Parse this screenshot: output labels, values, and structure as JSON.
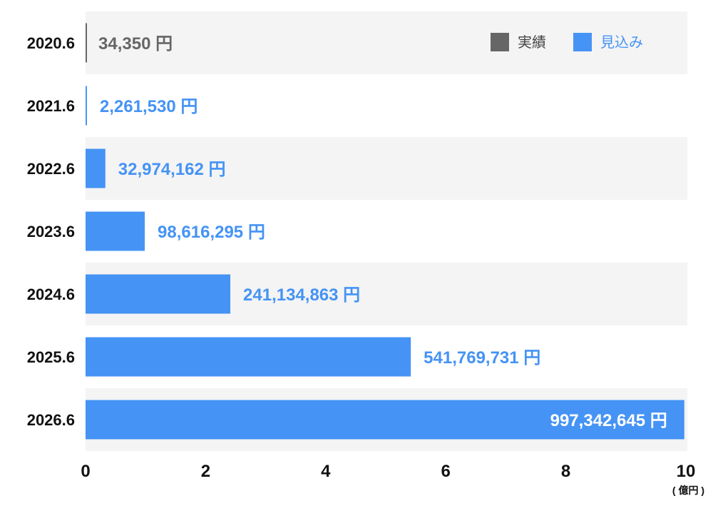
{
  "chart_data": {
    "type": "bar",
    "orientation": "horizontal",
    "categories": [
      "2020.6",
      "2021.6",
      "2022.6",
      "2023.6",
      "2024.6",
      "2025.6",
      "2026.6"
    ],
    "values": [
      34350,
      2261530,
      32974162,
      98616295,
      241134863,
      541769731,
      997342645
    ],
    "value_labels": [
      "34,350 円",
      "2,261,530 円",
      "32,974,162 円",
      "98,616,295 円",
      "241,134,863 円",
      "541,769,731 円",
      "997,342,645 円"
    ],
    "bar_kind": [
      "実績",
      "見込み",
      "見込み",
      "見込み",
      "見込み",
      "見込み",
      "見込み"
    ],
    "xlim": [
      0,
      10
    ],
    "x_unit_scale": 100000000,
    "xticks": [
      "0",
      "2",
      "4",
      "6",
      "8",
      "10"
    ],
    "xlabel": "( 億円 )",
    "legend": [
      {
        "name": "実績",
        "color": "#666666"
      },
      {
        "name": "見込み",
        "color": "#4593f5"
      }
    ],
    "legend_position": "top-right",
    "colors": {
      "actual": "#666666",
      "forecast": "#4593f5",
      "band_alt": "#f4f4f4",
      "label_inside": "#ffffff"
    }
  }
}
